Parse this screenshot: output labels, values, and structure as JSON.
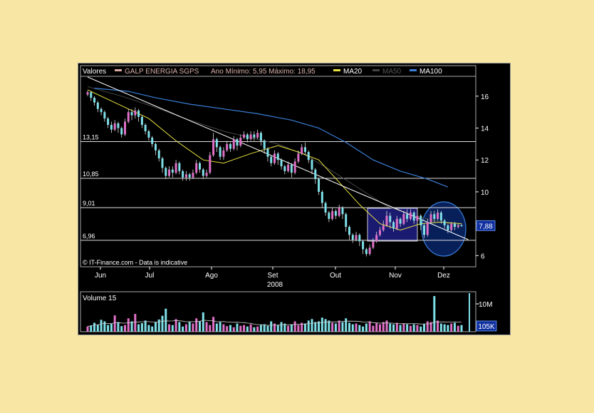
{
  "legend": {
    "label": "Valores",
    "security": "GALP ENERGIA SGPS",
    "range": "Ano Mínimo: 5,95 Máximo: 18,95",
    "ma20": "MA20",
    "ma50": "MA50",
    "ma100": "MA100"
  },
  "colors": {
    "up_candle": "#e070c8",
    "down_candle": "#7ee0e8",
    "ma20": "#e8e040",
    "ma50": "#444444",
    "ma100": "#3a7fd8",
    "security_swatch": "#d8a8a0",
    "highlight_box": "#1a1a70",
    "current_price_box": "#1030a0"
  },
  "watermark": "© IT-Finance.com - Data is indicative",
  "volume_label": "Volume 15",
  "volume_ticks": {
    "upper": "10M",
    "current": "105K"
  },
  "chart_data": {
    "type": "candlestick",
    "x_ticks": [
      "Jun",
      "Jul",
      "Ago",
      "Set",
      "Out",
      "Nov",
      "Dez"
    ],
    "x_year": "2008",
    "y_ticks": [
      "16",
      "14",
      "12",
      "10",
      "8",
      "6"
    ],
    "ylim": [
      5.3,
      17.2
    ],
    "current_price": "7,88",
    "levels": [
      {
        "label": "13,15",
        "value": 13.15
      },
      {
        "label": "10,85",
        "value": 10.85
      },
      {
        "label": "9,01",
        "value": 9.01
      },
      {
        "label": "6,96",
        "value": 6.96
      }
    ],
    "candles": [
      [
        16.1,
        16.25,
        16.35,
        16.0
      ],
      [
        16.25,
        15.9,
        16.3,
        15.7
      ],
      [
        15.9,
        15.6,
        16.0,
        15.4
      ],
      [
        15.6,
        15.2,
        15.7,
        15.0
      ],
      [
        15.2,
        15.0,
        15.3,
        14.8
      ],
      [
        15.0,
        14.6,
        15.1,
        14.4
      ],
      [
        14.6,
        14.2,
        14.7,
        14.0
      ],
      [
        14.2,
        13.9,
        14.4,
        13.7
      ],
      [
        13.9,
        14.3,
        14.5,
        13.8
      ],
      [
        14.3,
        14.0,
        14.4,
        13.7
      ],
      [
        14.0,
        13.6,
        14.1,
        13.4
      ],
      [
        13.6,
        14.4,
        14.6,
        13.5
      ],
      [
        14.4,
        15.0,
        15.2,
        14.3
      ],
      [
        15.0,
        14.8,
        15.2,
        14.5
      ],
      [
        14.8,
        15.1,
        15.3,
        14.6
      ],
      [
        15.1,
        14.7,
        15.2,
        14.4
      ],
      [
        14.7,
        14.2,
        14.8,
        14.0
      ],
      [
        14.2,
        13.8,
        14.3,
        13.6
      ],
      [
        13.8,
        13.4,
        13.9,
        13.2
      ],
      [
        13.4,
        13.0,
        13.5,
        12.8
      ],
      [
        13.0,
        12.6,
        13.1,
        12.3
      ],
      [
        12.6,
        12.1,
        12.7,
        11.9
      ],
      [
        12.1,
        11.5,
        12.2,
        11.2
      ],
      [
        11.5,
        11.0,
        11.6,
        10.8
      ],
      [
        11.0,
        11.4,
        11.6,
        10.9
      ],
      [
        11.4,
        11.2,
        11.6,
        10.9
      ],
      [
        11.2,
        11.8,
        12.0,
        11.1
      ],
      [
        11.8,
        11.3,
        11.9,
        11.1
      ],
      [
        11.3,
        10.9,
        11.4,
        10.7
      ],
      [
        10.9,
        11.1,
        11.3,
        10.7
      ],
      [
        11.1,
        10.9,
        11.2,
        10.7
      ],
      [
        10.9,
        11.2,
        11.4,
        10.8
      ],
      [
        11.2,
        11.8,
        12.0,
        11.1
      ],
      [
        11.8,
        11.4,
        11.9,
        11.2
      ],
      [
        11.4,
        11.0,
        11.5,
        10.8
      ],
      [
        11.0,
        11.2,
        11.4,
        10.9
      ],
      [
        11.2,
        12.3,
        12.5,
        11.1
      ],
      [
        12.3,
        13.3,
        13.7,
        12.2
      ],
      [
        13.3,
        12.8,
        13.4,
        12.5
      ],
      [
        12.8,
        12.2,
        12.9,
        12.0
      ],
      [
        12.2,
        12.6,
        12.8,
        12.0
      ],
      [
        12.6,
        13.0,
        13.2,
        12.5
      ],
      [
        13.0,
        12.7,
        13.1,
        12.5
      ],
      [
        12.7,
        13.3,
        13.5,
        12.6
      ],
      [
        13.3,
        12.9,
        13.4,
        12.6
      ],
      [
        12.9,
        13.4,
        13.6,
        12.8
      ],
      [
        13.4,
        13.6,
        13.8,
        13.3
      ],
      [
        13.6,
        13.3,
        13.7,
        13.1
      ],
      [
        13.3,
        13.6,
        13.8,
        13.2
      ],
      [
        13.6,
        13.4,
        13.8,
        13.2
      ],
      [
        13.4,
        13.7,
        13.9,
        13.3
      ],
      [
        13.7,
        13.2,
        13.8,
        12.9
      ],
      [
        13.2,
        12.7,
        13.3,
        12.4
      ],
      [
        12.7,
        12.2,
        12.8,
        11.9
      ],
      [
        12.2,
        11.8,
        12.3,
        11.6
      ],
      [
        11.8,
        12.4,
        12.6,
        11.7
      ],
      [
        12.4,
        12.0,
        12.5,
        11.7
      ],
      [
        12.0,
        11.6,
        12.1,
        11.4
      ],
      [
        11.6,
        11.3,
        11.7,
        11.1
      ],
      [
        11.3,
        11.7,
        11.9,
        11.2
      ],
      [
        11.7,
        11.2,
        11.8,
        10.9
      ],
      [
        11.2,
        11.9,
        12.1,
        11.1
      ],
      [
        11.9,
        12.4,
        12.6,
        11.8
      ],
      [
        12.4,
        12.8,
        13.0,
        12.3
      ],
      [
        12.8,
        12.5,
        13.1,
        12.3
      ],
      [
        12.5,
        12.0,
        12.6,
        11.8
      ],
      [
        12.0,
        11.4,
        12.1,
        11.1
      ],
      [
        11.4,
        10.8,
        11.5,
        10.5
      ],
      [
        10.8,
        10.0,
        10.9,
        9.8
      ],
      [
        10.0,
        9.3,
        10.1,
        9.0
      ],
      [
        9.3,
        8.7,
        9.4,
        8.5
      ],
      [
        8.7,
        8.3,
        8.8,
        8.1
      ],
      [
        8.3,
        8.8,
        9.0,
        8.2
      ],
      [
        8.8,
        8.5,
        8.9,
        8.3
      ],
      [
        8.5,
        9.0,
        9.2,
        8.4
      ],
      [
        9.0,
        8.6,
        9.1,
        8.3
      ],
      [
        8.6,
        7.8,
        8.7,
        7.5
      ],
      [
        7.8,
        7.3,
        7.9,
        7.0
      ],
      [
        7.3,
        7.0,
        7.4,
        6.8
      ],
      [
        7.0,
        7.3,
        7.5,
        6.9
      ],
      [
        7.3,
        6.9,
        7.4,
        6.6
      ],
      [
        6.9,
        6.4,
        7.0,
        6.1
      ],
      [
        6.4,
        6.1,
        6.5,
        5.95
      ],
      [
        6.1,
        6.5,
        6.7,
        6.0
      ],
      [
        6.5,
        6.9,
        7.1,
        6.4
      ],
      [
        6.9,
        7.3,
        7.5,
        6.8
      ],
      [
        7.3,
        7.6,
        7.8,
        7.2
      ],
      [
        7.6,
        7.9,
        8.2,
        7.5
      ],
      [
        7.9,
        8.5,
        8.8,
        7.8
      ],
      [
        8.5,
        8.1,
        8.7,
        7.7
      ],
      [
        8.1,
        7.7,
        8.2,
        7.5
      ],
      [
        7.7,
        8.3,
        8.5,
        7.6
      ],
      [
        8.3,
        8.0,
        8.4,
        7.8
      ],
      [
        8.0,
        8.6,
        8.8,
        7.9
      ],
      [
        8.6,
        8.3,
        8.9,
        8.1
      ],
      [
        8.3,
        8.7,
        8.9,
        8.2
      ],
      [
        8.7,
        8.2,
        8.8,
        8.0
      ],
      [
        8.2,
        8.5,
        8.7,
        8.1
      ],
      [
        8.5,
        7.9,
        8.6,
        7.6
      ],
      [
        7.9,
        7.3,
        8.0,
        7.1
      ],
      [
        7.3,
        8.1,
        8.3,
        7.2
      ],
      [
        8.1,
        8.6,
        8.8,
        8.0
      ],
      [
        8.6,
        8.3,
        8.8,
        8.1
      ],
      [
        8.3,
        8.7,
        8.9,
        8.2
      ],
      [
        8.7,
        8.2,
        8.8,
        8.0
      ],
      [
        8.2,
        7.9,
        8.3,
        7.7
      ],
      [
        7.9,
        7.6,
        8.0,
        7.4
      ],
      [
        7.6,
        8.0,
        8.1,
        7.5
      ],
      [
        8.0,
        7.8,
        8.1,
        7.6
      ],
      [
        7.8,
        7.9,
        8.0,
        7.7
      ],
      [
        7.9,
        7.88,
        8.0,
        7.8
      ]
    ],
    "ma20": [
      [
        0,
        16.4
      ],
      [
        8,
        15.6
      ],
      [
        18,
        14.6
      ],
      [
        26,
        13.2
      ],
      [
        34,
        12.0
      ],
      [
        40,
        11.8
      ],
      [
        48,
        12.4
      ],
      [
        56,
        12.9
      ],
      [
        62,
        12.5
      ],
      [
        68,
        12.0
      ],
      [
        74,
        10.6
      ],
      [
        80,
        9.2
      ],
      [
        86,
        8.0
      ],
      [
        92,
        7.6
      ],
      [
        98,
        8.0
      ],
      [
        104,
        8.1
      ],
      [
        110,
        8.0
      ]
    ],
    "ma50": [
      [
        0,
        16.6
      ],
      [
        10,
        16.0
      ],
      [
        20,
        15.3
      ],
      [
        30,
        14.5
      ],
      [
        40,
        13.8
      ],
      [
        48,
        13.4
      ],
      [
        56,
        13.0
      ],
      [
        64,
        12.3
      ],
      [
        72,
        11.3
      ],
      [
        80,
        10.2
      ],
      [
        88,
        9.1
      ],
      [
        96,
        8.5
      ],
      [
        104,
        8.1
      ],
      [
        110,
        7.9
      ]
    ],
    "ma100": [
      [
        2,
        16.5
      ],
      [
        12,
        16.3
      ],
      [
        20,
        15.9
      ],
      [
        30,
        15.5
      ],
      [
        40,
        15.2
      ],
      [
        50,
        14.9
      ],
      [
        60,
        14.5
      ],
      [
        68,
        14.0
      ],
      [
        76,
        13.1
      ],
      [
        84,
        12.0
      ],
      [
        92,
        11.3
      ],
      [
        100,
        10.8
      ],
      [
        106,
        10.3
      ]
    ],
    "trendline": [
      [
        0,
        17.2
      ],
      [
        112,
        7.0
      ]
    ],
    "volume": [
      0.14,
      0.17,
      0.24,
      0.19,
      0.32,
      0.28,
      0.18,
      0.22,
      0.44,
      0.26,
      0.15,
      0.18,
      0.36,
      0.28,
      0.48,
      0.2,
      0.23,
      0.3,
      0.18,
      0.14,
      0.25,
      0.33,
      0.43,
      0.62,
      0.2,
      0.18,
      0.34,
      0.26,
      0.14,
      0.2,
      0.26,
      0.22,
      0.36,
      0.28,
      0.52,
      0.26,
      0.18,
      0.4,
      0.22,
      0.26,
      0.2,
      0.15,
      0.18,
      0.12,
      0.22,
      0.16,
      0.18,
      0.14,
      0.2,
      0.12,
      0.14,
      0.18,
      0.2,
      0.16,
      0.28,
      0.22,
      0.18,
      0.26,
      0.22,
      0.16,
      0.2,
      0.28,
      0.18,
      0.24,
      0.22,
      0.3,
      0.34,
      0.26,
      0.28,
      0.38,
      0.34,
      0.3,
      0.24,
      0.22,
      0.3,
      0.26,
      0.36,
      0.24,
      0.2,
      0.22,
      0.18,
      0.14,
      0.22,
      0.28,
      0.16,
      0.24,
      0.2,
      0.26,
      0.3,
      0.22,
      0.2,
      0.24,
      0.18,
      0.22,
      0.2,
      0.16,
      0.2,
      0.18,
      0.14,
      0.2,
      0.28,
      0.26,
      0.96,
      0.3,
      0.22,
      0.2,
      0.18,
      0.22,
      0.24,
      0.16,
      0.18
    ]
  }
}
